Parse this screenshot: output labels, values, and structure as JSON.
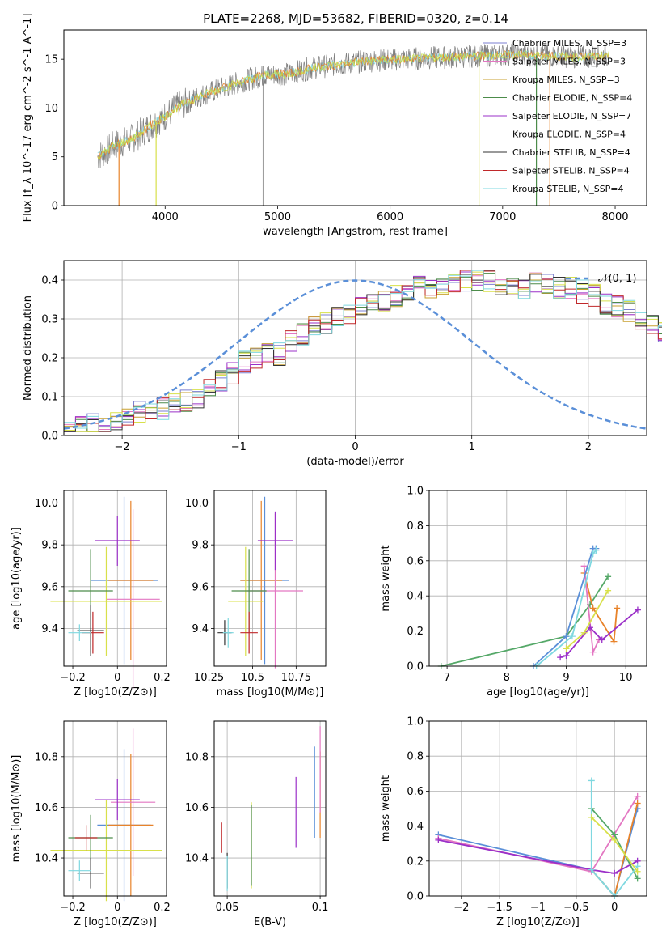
{
  "palette": [
    "#4c72b0",
    "#e8832a",
    "#55a868",
    "#c44e52",
    "#8172b2",
    "#937860",
    "#da8bc3",
    "#8c8c8c",
    "#ccb974",
    "#64b5cd"
  ],
  "chart_data": [
    {
      "id": "spectrum",
      "type": "line",
      "title": "PLATE=2268, MJD=53682, FIBERID=0320, z=0.14",
      "xlabel": "wavelength [Angstrom, rest frame]",
      "ylabel": "Flux [f_λ 10^-17 erg cm^-2 s^-1 A^-1]",
      "xlim": [
        3100,
        8280
      ],
      "ylim": [
        0,
        18
      ],
      "xticks": [
        4000,
        5000,
        6000,
        7000,
        8000
      ],
      "yticks": [
        0,
        5,
        10,
        15
      ],
      "grid": false,
      "legend_position": "top-right",
      "legend": [
        {
          "label": "Chabrier MILES, N_SSP=3",
          "color": "#7b7fd0"
        },
        {
          "label": "Salpeter MILES, N_SSP=3",
          "color": "#e377c2"
        },
        {
          "label": "Kroupa MILES, N_SSP=3",
          "color": "#c8a030"
        },
        {
          "label": "Chabrier ELODIE, N_SSP=4",
          "color": "#4c8c4a"
        },
        {
          "label": "Salpeter ELODIE, N_SSP=7",
          "color": "#9b30c8"
        },
        {
          "label": "Kroupa ELODIE, N_SSP=4",
          "color": "#d8e04a"
        },
        {
          "label": "Chabrier STELIB, N_SSP=4",
          "color": "#333333"
        },
        {
          "label": "Salpeter STELIB, N_SSP=4",
          "color": "#c0282a"
        },
        {
          "label": "Kroupa STELIB, N_SSP=4",
          "color": "#7fd8e0"
        }
      ],
      "data_color": "#808080",
      "model_colors": [
        "#7fd8e0",
        "#e8832a",
        "#c8e04a"
      ],
      "continuum": {
        "x": [
          3400,
          3550,
          3700,
          3850,
          3950,
          4100,
          4300,
          4500,
          4700,
          4900,
          5100,
          5300,
          5500,
          5700,
          5900,
          6100,
          6300,
          6500,
          6700,
          6900,
          7100,
          7300,
          7500,
          7700,
          7900
        ],
        "y": [
          5.0,
          6.2,
          6.8,
          8.0,
          8.8,
          10.0,
          11.2,
          12.0,
          12.8,
          13.4,
          13.5,
          14.1,
          14.4,
          14.7,
          14.9,
          15.0,
          15.1,
          15.2,
          15.3,
          15.4,
          15.5,
          15.4,
          15.3,
          15.2,
          15.4
        ]
      },
      "drops": [
        {
          "x": 3590,
          "color": "#e8832a"
        },
        {
          "x": 3920,
          "color": "#d8e04a"
        },
        {
          "x": 6790,
          "color": "#d8e04a"
        },
        {
          "x": 7300,
          "color": "#4c8c4a"
        },
        {
          "x": 7420,
          "color": "#e8832a"
        }
      ],
      "dips": [
        4870
      ]
    },
    {
      "id": "residuals",
      "type": "histogram",
      "xlabel": "(data-model)/error",
      "ylabel": "Normed distribution",
      "xlim": [
        -2.5,
        2.5
      ],
      "ylim": [
        0,
        0.45
      ],
      "xticks": [
        -2,
        -1,
        0,
        1,
        2
      ],
      "yticks": [
        0.0,
        0.1,
        0.2,
        0.3,
        0.4
      ],
      "grid": true,
      "legend_position": "top-right",
      "legend": [
        {
          "label": "𝒩(0, 1)",
          "color": "#5a8fd8",
          "style": "dashed"
        }
      ],
      "bin_width": 0.1,
      "bin_start": -2.5,
      "series_colors": [
        "#7b7fd0",
        "#e377c2",
        "#c8a030",
        "#4c8c4a",
        "#9b30c8",
        "#d8e04a",
        "#333333",
        "#c0282a",
        "#7fd8e0"
      ],
      "base_values": [
        0.02,
        0.02,
        0.03,
        0.03,
        0.04,
        0.05,
        0.06,
        0.06,
        0.07,
        0.08,
        0.09,
        0.1,
        0.12,
        0.14,
        0.16,
        0.19,
        0.2,
        0.21,
        0.21,
        0.24,
        0.26,
        0.28,
        0.29,
        0.3,
        0.31,
        0.33,
        0.34,
        0.35,
        0.36,
        0.37,
        0.38,
        0.38,
        0.39,
        0.39,
        0.4,
        0.4,
        0.4,
        0.39,
        0.39,
        0.38,
        0.39,
        0.39,
        0.38,
        0.38,
        0.37,
        0.36,
        0.34,
        0.33,
        0.32,
        0.3,
        0.29,
        0.27,
        0.26,
        0.24,
        0.22,
        0.21,
        0.19,
        0.17,
        0.16,
        0.15,
        0.13,
        0.12,
        0.11,
        0.1,
        0.09,
        0.08,
        0.07,
        0.06,
        0.06,
        0.05,
        0.05,
        0.04,
        0.04,
        0.03,
        0.03,
        0.03,
        0.02,
        0.02,
        0.02,
        0.02
      ]
    },
    {
      "id": "age-vs-z",
      "type": "errorbar",
      "xlabel": "Z [log10(Z/Z⊙)]",
      "ylabel": "age  [log10(age/yr)]",
      "xlim": [
        -0.24,
        0.22
      ],
      "ylim": [
        9.22,
        10.06
      ],
      "xticks": [
        -0.2,
        0.0,
        0.2
      ],
      "yticks": [
        9.4,
        9.6,
        9.8,
        10.0
      ],
      "grid": true,
      "points": [
        {
          "x": 0.03,
          "y": 9.63,
          "xerr": 0.15,
          "yerr": 0.4,
          "color": "#5a8fd8"
        },
        {
          "x": 0.06,
          "y": 9.63,
          "xerr": 0.1,
          "yerr": 0.38,
          "color": "#e8832a"
        },
        {
          "x": 0.07,
          "y": 9.54,
          "xerr": 0.12,
          "yerr": 0.43,
          "color": "#e377c2"
        },
        {
          "x": 0.0,
          "y": 9.82,
          "xerr": 0.1,
          "yerr": 0.12,
          "color": "#9b30c8"
        },
        {
          "x": -0.05,
          "y": 9.53,
          "xerr": 0.25,
          "yerr": 0.26,
          "color": "#d8e04a"
        },
        {
          "x": -0.12,
          "y": 9.58,
          "xerr": 0.1,
          "yerr": 0.2,
          "color": "#4c8c4a"
        },
        {
          "x": -0.12,
          "y": 9.39,
          "xerr": 0.06,
          "yerr": 0.12,
          "color": "#333333"
        },
        {
          "x": -0.11,
          "y": 9.38,
          "xerr": 0.05,
          "yerr": 0.1,
          "color": "#c0282a"
        },
        {
          "x": -0.17,
          "y": 9.38,
          "xerr": 0.05,
          "yerr": 0.04,
          "color": "#7fd8e0"
        }
      ]
    },
    {
      "id": "age-vs-mass",
      "type": "errorbar",
      "xlabel": "mass [log10(M/M⊙)]",
      "ylabel": "",
      "xlim": [
        10.28,
        10.92
      ],
      "ylim": [
        9.22,
        10.06
      ],
      "xticks": [
        10.25,
        10.5,
        10.75
      ],
      "yticks": [
        9.4,
        9.6,
        9.8,
        10.0
      ],
      "grid": true,
      "points": [
        {
          "x": 10.57,
          "y": 9.63,
          "xerr": 0.14,
          "yerr": 0.4,
          "color": "#5a8fd8"
        },
        {
          "x": 10.55,
          "y": 9.63,
          "xerr": 0.12,
          "yerr": 0.38,
          "color": "#e8832a"
        },
        {
          "x": 10.63,
          "y": 9.58,
          "xerr": 0.16,
          "yerr": 0.37,
          "color": "#e377c2"
        },
        {
          "x": 10.63,
          "y": 9.82,
          "xerr": 0.1,
          "yerr": 0.14,
          "color": "#9b30c8"
        },
        {
          "x": 10.46,
          "y": 9.53,
          "xerr": 0.1,
          "yerr": 0.26,
          "color": "#d8e04a"
        },
        {
          "x": 10.48,
          "y": 9.58,
          "xerr": 0.1,
          "yerr": 0.2,
          "color": "#4c8c4a"
        },
        {
          "x": 10.34,
          "y": 9.38,
          "xerr": 0.04,
          "yerr": 0.06,
          "color": "#333333"
        },
        {
          "x": 10.48,
          "y": 9.38,
          "xerr": 0.05,
          "yerr": 0.1,
          "color": "#c0282a"
        },
        {
          "x": 10.36,
          "y": 9.38,
          "xerr": 0.03,
          "yerr": 0.07,
          "color": "#7fd8e0"
        }
      ]
    },
    {
      "id": "weight-vs-age",
      "type": "line",
      "xlabel": "age  [log10(age/yr)]",
      "ylabel": "mass weight",
      "xlim": [
        6.7,
        10.35
      ],
      "ylim": [
        0.0,
        1.0
      ],
      "xticks": [
        7,
        8,
        9,
        10
      ],
      "yticks": [
        0.0,
        0.2,
        0.4,
        0.6,
        0.8,
        1.0
      ],
      "grid": true,
      "series": [
        {
          "color": "#55a868",
          "x": [
            6.9,
            9.0,
            9.4,
            9.7
          ],
          "y": [
            0.0,
            0.17,
            0.35,
            0.51
          ]
        },
        {
          "color": "#e8832a",
          "x": [
            9.3,
            9.45,
            9.8,
            9.85
          ],
          "y": [
            0.53,
            0.33,
            0.14,
            0.33
          ]
        },
        {
          "color": "#e377c2",
          "x": [
            9.3,
            9.45,
            9.55
          ],
          "y": [
            0.57,
            0.08,
            0.15
          ]
        },
        {
          "color": "#5a8fd8",
          "x": [
            8.45,
            9.0,
            9.45,
            9.5
          ],
          "y": [
            0.0,
            0.17,
            0.67,
            0.67
          ]
        },
        {
          "color": "#7fd8e0",
          "x": [
            8.5,
            9.1,
            9.45,
            9.5
          ],
          "y": [
            0.0,
            0.17,
            0.64,
            0.66
          ]
        },
        {
          "color": "#9b30c8",
          "x": [
            8.9,
            9.0,
            9.4,
            9.6,
            10.2
          ],
          "y": [
            0.05,
            0.06,
            0.22,
            0.15,
            0.32
          ]
        },
        {
          "color": "#d8e04a",
          "x": [
            9.0,
            9.3,
            9.7
          ],
          "y": [
            0.1,
            0.19,
            0.43
          ]
        }
      ]
    },
    {
      "id": "mass-vs-z",
      "type": "errorbar",
      "xlabel": "Z [log10(Z/Z⊙)]",
      "ylabel": "mass [log10(M/M⊙)]",
      "xlim": [
        -0.24,
        0.22
      ],
      "ylim": [
        10.25,
        10.94
      ],
      "xticks": [
        -0.2,
        0.0,
        0.2
      ],
      "yticks": [
        10.4,
        10.6,
        10.8
      ],
      "grid": true,
      "points": [
        {
          "x": 0.03,
          "y": 10.53,
          "xerr": 0.12,
          "yerr": 0.3,
          "color": "#5a8fd8"
        },
        {
          "x": 0.06,
          "y": 10.53,
          "xerr": 0.1,
          "yerr": 0.28,
          "color": "#e8832a"
        },
        {
          "x": 0.07,
          "y": 10.62,
          "xerr": 0.1,
          "yerr": 0.29,
          "color": "#e377c2"
        },
        {
          "x": 0.0,
          "y": 10.63,
          "xerr": 0.1,
          "yerr": 0.08,
          "color": "#9b30c8"
        },
        {
          "x": -0.05,
          "y": 10.43,
          "xerr": 0.25,
          "yerr": 0.2,
          "color": "#d8e04a"
        },
        {
          "x": -0.12,
          "y": 10.48,
          "xerr": 0.1,
          "yerr": 0.09,
          "color": "#4c8c4a"
        },
        {
          "x": -0.12,
          "y": 10.34,
          "xerr": 0.06,
          "yerr": 0.06,
          "color": "#333333"
        },
        {
          "x": -0.14,
          "y": 10.48,
          "xerr": 0.05,
          "yerr": 0.05,
          "color": "#c0282a"
        },
        {
          "x": -0.17,
          "y": 10.35,
          "xerr": 0.05,
          "yerr": 0.04,
          "color": "#7fd8e0"
        }
      ]
    },
    {
      "id": "mass-vs-ebv",
      "type": "errorbar",
      "xlabel": "E(B-V)",
      "ylabel": "",
      "xlim": [
        0.043,
        0.103
      ],
      "ylim": [
        10.25,
        10.94
      ],
      "xticks": [
        0.05,
        0.1
      ],
      "yticks": [
        10.4,
        10.6,
        10.8
      ],
      "grid": true,
      "points": [
        {
          "x": 0.097,
          "y": 10.66,
          "xerr": 0.0,
          "yerr": 0.18,
          "color": "#5a8fd8"
        },
        {
          "x": 0.1,
          "y": 10.65,
          "xerr": 0.0,
          "yerr": 0.17,
          "color": "#e8832a"
        },
        {
          "x": 0.1,
          "y": 10.75,
          "xerr": 0.0,
          "yerr": 0.17,
          "color": "#e377c2"
        },
        {
          "x": 0.087,
          "y": 10.58,
          "xerr": 0.0,
          "yerr": 0.14,
          "color": "#9b30c8"
        },
        {
          "x": 0.063,
          "y": 10.45,
          "xerr": 0.0,
          "yerr": 0.17,
          "color": "#d8e04a"
        },
        {
          "x": 0.063,
          "y": 10.45,
          "xerr": 0.0,
          "yerr": 0.16,
          "color": "#4c8c4a"
        },
        {
          "x": 0.05,
          "y": 10.35,
          "xerr": 0.0,
          "yerr": 0.07,
          "color": "#333333"
        },
        {
          "x": 0.047,
          "y": 10.48,
          "xerr": 0.0,
          "yerr": 0.06,
          "color": "#c0282a"
        },
        {
          "x": 0.05,
          "y": 10.34,
          "xerr": 0.0,
          "yerr": 0.07,
          "color": "#7fd8e0"
        }
      ]
    },
    {
      "id": "weight-vs-z",
      "type": "line",
      "xlabel": "Z [log10(Z/Z⊙)]",
      "ylabel": "mass weight",
      "xlim": [
        -2.42,
        0.42
      ],
      "ylim": [
        0.0,
        1.0
      ],
      "xticks": [
        -2.0,
        -1.5,
        -1.0,
        -0.5,
        0.0
      ],
      "yticks": [
        0.0,
        0.2,
        0.4,
        0.6,
        0.8,
        1.0
      ],
      "grid": true,
      "series": [
        {
          "color": "#5a8fd8",
          "x": [
            -2.3,
            -0.3,
            0.0,
            0.3
          ],
          "y": [
            0.35,
            0.15,
            0.0,
            0.5
          ]
        },
        {
          "color": "#e377c2",
          "x": [
            -2.3,
            -0.3,
            0.3
          ],
          "y": [
            0.33,
            0.14,
            0.57
          ]
        },
        {
          "color": "#e8832a",
          "x": [
            -0.3,
            0.0,
            0.3
          ],
          "y": [
            0.15,
            0.0,
            0.53
          ]
        },
        {
          "color": "#9b30c8",
          "x": [
            -2.3,
            -0.3,
            0.0,
            0.3
          ],
          "y": [
            0.32,
            0.15,
            0.13,
            0.2
          ]
        },
        {
          "color": "#55a868",
          "x": [
            -0.3,
            0.0,
            0.3
          ],
          "y": [
            0.5,
            0.35,
            0.1
          ]
        },
        {
          "color": "#7fd8e0",
          "x": [
            -0.3,
            -0.3,
            0.0,
            0.3
          ],
          "y": [
            0.66,
            0.15,
            0.0,
            0.17
          ]
        },
        {
          "color": "#d8e04a",
          "x": [
            -0.3,
            0.0,
            0.3
          ],
          "y": [
            0.45,
            0.32,
            0.14
          ]
        }
      ]
    }
  ]
}
